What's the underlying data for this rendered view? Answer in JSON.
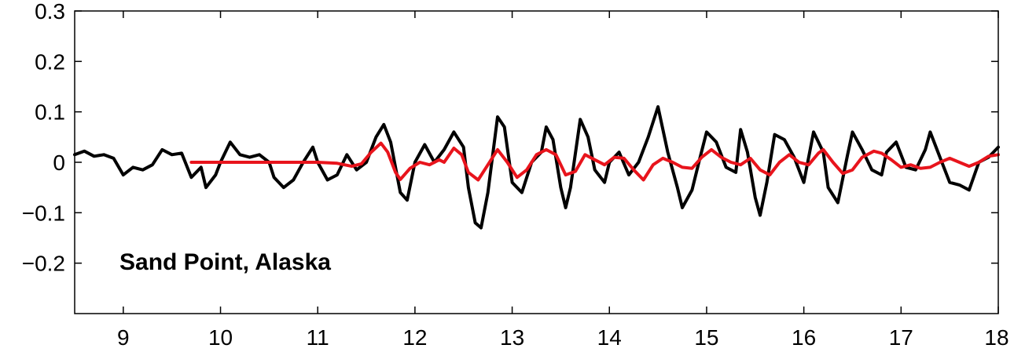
{
  "chart_data": {
    "type": "line",
    "title": "",
    "xlabel": "",
    "ylabel": "",
    "xlim": [
      8.5,
      18
    ],
    "ylim": [
      -0.3,
      0.3
    ],
    "grid": false,
    "legend": "none",
    "x_ticks": [
      9,
      10,
      11,
      12,
      13,
      14,
      15,
      16,
      17,
      18
    ],
    "y_ticks": [
      0.3,
      0.2,
      0.1,
      0,
      -0.1,
      -0.2
    ],
    "x_tick_labels": [
      "9",
      "10",
      "11",
      "12",
      "13",
      "14",
      "15",
      "16",
      "17",
      "18"
    ],
    "y_tick_labels": [
      "0.3",
      "0.2",
      "0.1",
      "0",
      "−0.1",
      "−0.2"
    ],
    "annotation": "Sand Point, Alaska",
    "series": [
      {
        "color": "#000000",
        "points": [
          [
            8.5,
            0.015
          ],
          [
            8.6,
            0.022
          ],
          [
            8.7,
            0.012
          ],
          [
            8.8,
            0.015
          ],
          [
            8.9,
            0.008
          ],
          [
            9.0,
            -0.025
          ],
          [
            9.1,
            -0.01
          ],
          [
            9.2,
            -0.015
          ],
          [
            9.3,
            -0.005
          ],
          [
            9.4,
            0.025
          ],
          [
            9.5,
            0.015
          ],
          [
            9.6,
            0.018
          ],
          [
            9.7,
            -0.03
          ],
          [
            9.8,
            -0.01
          ],
          [
            9.85,
            -0.05
          ],
          [
            9.95,
            -0.025
          ],
          [
            10.0,
            0.0
          ],
          [
            10.1,
            0.04
          ],
          [
            10.2,
            0.015
          ],
          [
            10.3,
            0.01
          ],
          [
            10.4,
            0.015
          ],
          [
            10.5,
            0.0
          ],
          [
            10.55,
            -0.03
          ],
          [
            10.65,
            -0.05
          ],
          [
            10.75,
            -0.035
          ],
          [
            10.85,
            0.0
          ],
          [
            10.95,
            0.03
          ],
          [
            11.0,
            0.0
          ],
          [
            11.1,
            -0.035
          ],
          [
            11.2,
            -0.025
          ],
          [
            11.3,
            0.015
          ],
          [
            11.4,
            -0.015
          ],
          [
            11.5,
            0.0
          ],
          [
            11.6,
            0.05
          ],
          [
            11.68,
            0.075
          ],
          [
            11.75,
            0.04
          ],
          [
            11.85,
            -0.06
          ],
          [
            11.92,
            -0.075
          ],
          [
            12.0,
            0.0
          ],
          [
            12.1,
            0.035
          ],
          [
            12.2,
            0.0
          ],
          [
            12.3,
            0.025
          ],
          [
            12.4,
            0.06
          ],
          [
            12.5,
            0.03
          ],
          [
            12.55,
            -0.05
          ],
          [
            12.62,
            -0.12
          ],
          [
            12.68,
            -0.13
          ],
          [
            12.75,
            -0.06
          ],
          [
            12.85,
            0.09
          ],
          [
            12.92,
            0.07
          ],
          [
            13.0,
            -0.04
          ],
          [
            13.1,
            -0.06
          ],
          [
            13.2,
            0.0
          ],
          [
            13.3,
            0.02
          ],
          [
            13.35,
            0.07
          ],
          [
            13.42,
            0.045
          ],
          [
            13.5,
            -0.05
          ],
          [
            13.55,
            -0.09
          ],
          [
            13.6,
            -0.05
          ],
          [
            13.7,
            0.085
          ],
          [
            13.78,
            0.05
          ],
          [
            13.85,
            -0.015
          ],
          [
            13.95,
            -0.04
          ],
          [
            14.0,
            0.0
          ],
          [
            14.1,
            0.02
          ],
          [
            14.2,
            -0.025
          ],
          [
            14.3,
            0.0
          ],
          [
            14.4,
            0.05
          ],
          [
            14.5,
            0.11
          ],
          [
            14.6,
            0.02
          ],
          [
            14.7,
            -0.05
          ],
          [
            14.75,
            -0.09
          ],
          [
            14.85,
            -0.055
          ],
          [
            14.92,
            0.0
          ],
          [
            15.0,
            0.06
          ],
          [
            15.1,
            0.04
          ],
          [
            15.2,
            -0.01
          ],
          [
            15.3,
            -0.02
          ],
          [
            15.35,
            0.065
          ],
          [
            15.42,
            0.02
          ],
          [
            15.5,
            -0.07
          ],
          [
            15.55,
            -0.105
          ],
          [
            15.62,
            -0.04
          ],
          [
            15.7,
            0.055
          ],
          [
            15.8,
            0.045
          ],
          [
            15.9,
            0.01
          ],
          [
            16.0,
            -0.04
          ],
          [
            16.1,
            0.06
          ],
          [
            16.2,
            0.02
          ],
          [
            16.25,
            -0.05
          ],
          [
            16.35,
            -0.08
          ],
          [
            16.45,
            0.015
          ],
          [
            16.5,
            0.06
          ],
          [
            16.6,
            0.025
          ],
          [
            16.7,
            -0.015
          ],
          [
            16.8,
            -0.025
          ],
          [
            16.85,
            0.02
          ],
          [
            16.95,
            0.04
          ],
          [
            17.05,
            -0.01
          ],
          [
            17.15,
            -0.015
          ],
          [
            17.25,
            0.025
          ],
          [
            17.3,
            0.06
          ],
          [
            17.4,
            0.01
          ],
          [
            17.5,
            -0.04
          ],
          [
            17.6,
            -0.045
          ],
          [
            17.7,
            -0.055
          ],
          [
            17.8,
            0.0
          ],
          [
            17.9,
            0.01
          ],
          [
            18.0,
            0.03
          ]
        ]
      },
      {
        "color": "#e8141c",
        "points": [
          [
            9.7,
            0.0
          ],
          [
            10.0,
            0.0
          ],
          [
            10.5,
            0.0
          ],
          [
            11.0,
            0.0
          ],
          [
            11.2,
            -0.002
          ],
          [
            11.35,
            -0.008
          ],
          [
            11.45,
            -0.003
          ],
          [
            11.55,
            0.02
          ],
          [
            11.65,
            0.038
          ],
          [
            11.72,
            0.02
          ],
          [
            11.8,
            -0.02
          ],
          [
            11.85,
            -0.034
          ],
          [
            11.95,
            -0.012
          ],
          [
            12.05,
            0.0
          ],
          [
            12.15,
            -0.005
          ],
          [
            12.25,
            0.005
          ],
          [
            12.3,
            0.0
          ],
          [
            12.4,
            0.028
          ],
          [
            12.48,
            0.015
          ],
          [
            12.55,
            -0.02
          ],
          [
            12.65,
            -0.035
          ],
          [
            12.75,
            -0.005
          ],
          [
            12.85,
            0.025
          ],
          [
            12.95,
            0.0
          ],
          [
            13.05,
            -0.03
          ],
          [
            13.15,
            -0.015
          ],
          [
            13.25,
            0.015
          ],
          [
            13.35,
            0.025
          ],
          [
            13.45,
            0.015
          ],
          [
            13.55,
            -0.025
          ],
          [
            13.65,
            -0.018
          ],
          [
            13.75,
            0.015
          ],
          [
            13.85,
            0.005
          ],
          [
            13.95,
            -0.005
          ],
          [
            14.05,
            0.01
          ],
          [
            14.15,
            0.008
          ],
          [
            14.25,
            -0.015
          ],
          [
            14.35,
            -0.035
          ],
          [
            14.45,
            -0.005
          ],
          [
            14.55,
            0.008
          ],
          [
            14.65,
            0.0
          ],
          [
            14.75,
            -0.01
          ],
          [
            14.85,
            -0.012
          ],
          [
            14.95,
            0.01
          ],
          [
            15.05,
            0.025
          ],
          [
            15.15,
            0.01
          ],
          [
            15.25,
            0.0
          ],
          [
            15.35,
            -0.005
          ],
          [
            15.45,
            0.008
          ],
          [
            15.55,
            -0.015
          ],
          [
            15.65,
            -0.025
          ],
          [
            15.75,
            0.0
          ],
          [
            15.85,
            0.015
          ],
          [
            15.95,
            0.0
          ],
          [
            16.05,
            -0.005
          ],
          [
            16.15,
            0.018
          ],
          [
            16.2,
            0.025
          ],
          [
            16.3,
            0.0
          ],
          [
            16.4,
            -0.022
          ],
          [
            16.5,
            -0.015
          ],
          [
            16.6,
            0.01
          ],
          [
            16.72,
            0.022
          ],
          [
            16.8,
            0.018
          ],
          [
            16.9,
            0.005
          ],
          [
            17.0,
            -0.01
          ],
          [
            17.1,
            -0.005
          ],
          [
            17.2,
            -0.012
          ],
          [
            17.3,
            -0.01
          ],
          [
            17.4,
            0.0
          ],
          [
            17.5,
            0.008
          ],
          [
            17.6,
            0.0
          ],
          [
            17.7,
            -0.008
          ],
          [
            17.8,
            0.0
          ],
          [
            17.9,
            0.012
          ],
          [
            18.0,
            0.015
          ]
        ]
      }
    ]
  }
}
